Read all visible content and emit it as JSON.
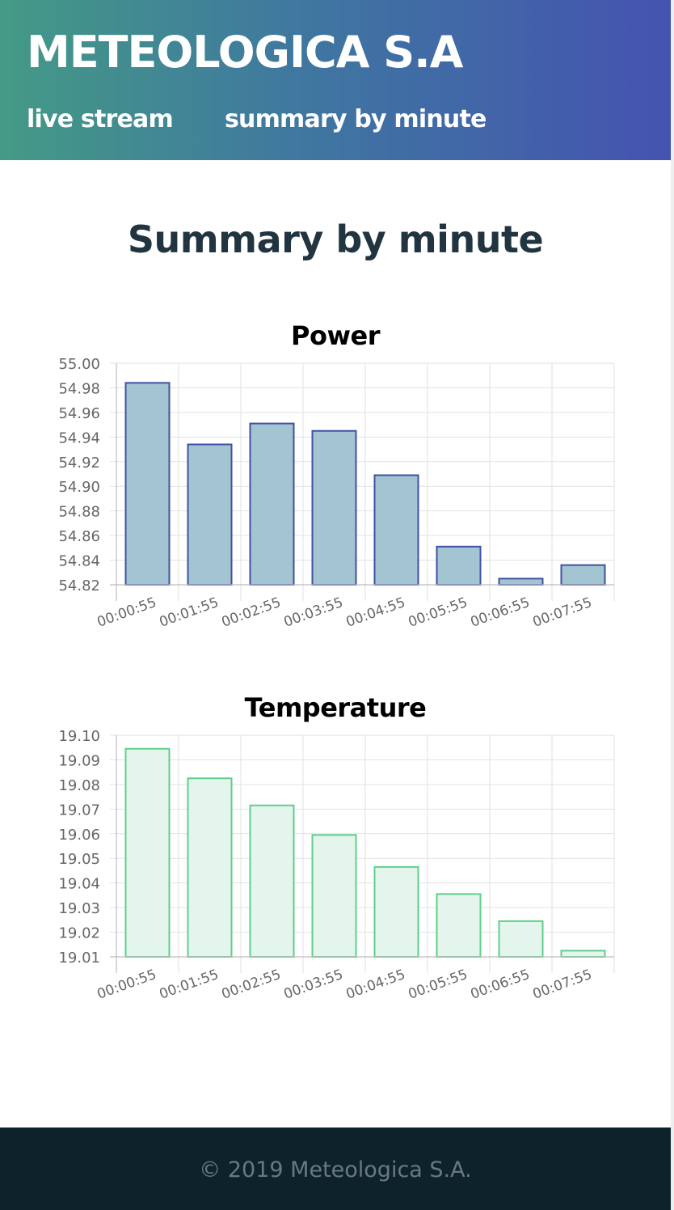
{
  "header": {
    "brand": "METEOLOGICA S.A",
    "nav": [
      {
        "label": "live stream"
      },
      {
        "label": "summary by minute"
      }
    ]
  },
  "main": {
    "title": "Summary by minute"
  },
  "colors": {
    "header_gradient_start": "#449a86",
    "header_gradient_end": "#4453b0",
    "power_bar_fill": "#a3c4d1",
    "power_bar_border": "#3f51a3",
    "temperature_bar_fill": "#e3f5ec",
    "temperature_bar_border": "#5fcf8a",
    "footer_background": "#0d222b"
  },
  "chart_data": [
    {
      "type": "bar",
      "title": "Power",
      "categories": [
        "00:00:55",
        "00:01:55",
        "00:02:55",
        "00:03:55",
        "00:04:55",
        "00:05:55",
        "00:06:55",
        "00:07:55"
      ],
      "values": [
        54.984,
        54.934,
        54.951,
        54.945,
        54.909,
        54.851,
        54.825,
        54.836
      ],
      "ylim": [
        54.82,
        55.0
      ],
      "yticks": [
        "55.00",
        "54.98",
        "54.96",
        "54.94",
        "54.92",
        "54.90",
        "54.88",
        "54.86",
        "54.84",
        "54.82"
      ],
      "grid": true,
      "legend": "none"
    },
    {
      "type": "bar",
      "title": "Temperature",
      "categories": [
        "00:00:55",
        "00:01:55",
        "00:02:55",
        "00:03:55",
        "00:04:55",
        "00:05:55",
        "00:06:55",
        "00:07:55"
      ],
      "values": [
        19.0945,
        19.0825,
        19.0715,
        19.0595,
        19.0465,
        19.0355,
        19.0245,
        19.0125
      ],
      "ylim": [
        19.01,
        19.1
      ],
      "yticks": [
        "19.10",
        "19.09",
        "19.08",
        "19.07",
        "19.06",
        "19.05",
        "19.04",
        "19.03",
        "19.02",
        "19.01"
      ],
      "grid": true,
      "legend": "none"
    }
  ],
  "footer": {
    "copyright": "© 2019 Meteologica S.A."
  }
}
